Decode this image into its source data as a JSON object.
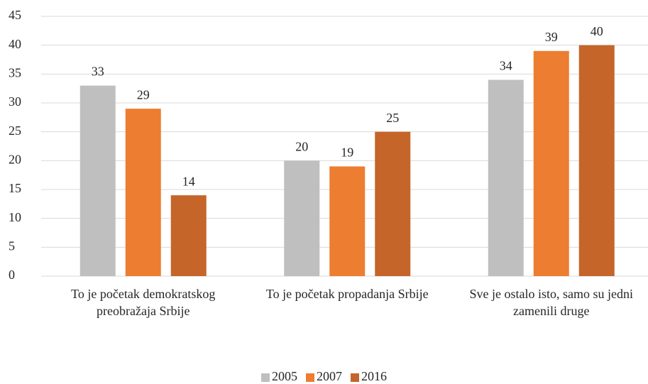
{
  "chart_data": {
    "type": "bar",
    "categories": [
      "To je početak demokratskog preobražaja Srbije",
      "To je početak propadanja Srbije",
      "Sve je ostalo isto, samo su jedni zamenili druge"
    ],
    "series": [
      {
        "name": "2005",
        "color": "#bfbfbf",
        "values": [
          33,
          20,
          34
        ]
      },
      {
        "name": "2007",
        "color": "#ed7d31",
        "values": [
          29,
          19,
          39
        ]
      },
      {
        "name": "2016",
        "color": "#c5652a",
        "values": [
          14,
          25,
          40
        ]
      }
    ],
    "ylim": [
      0,
      45
    ],
    "yticks": [
      0,
      5,
      10,
      15,
      20,
      25,
      30,
      35,
      40,
      45
    ],
    "grid": true,
    "legend": "bottom"
  }
}
